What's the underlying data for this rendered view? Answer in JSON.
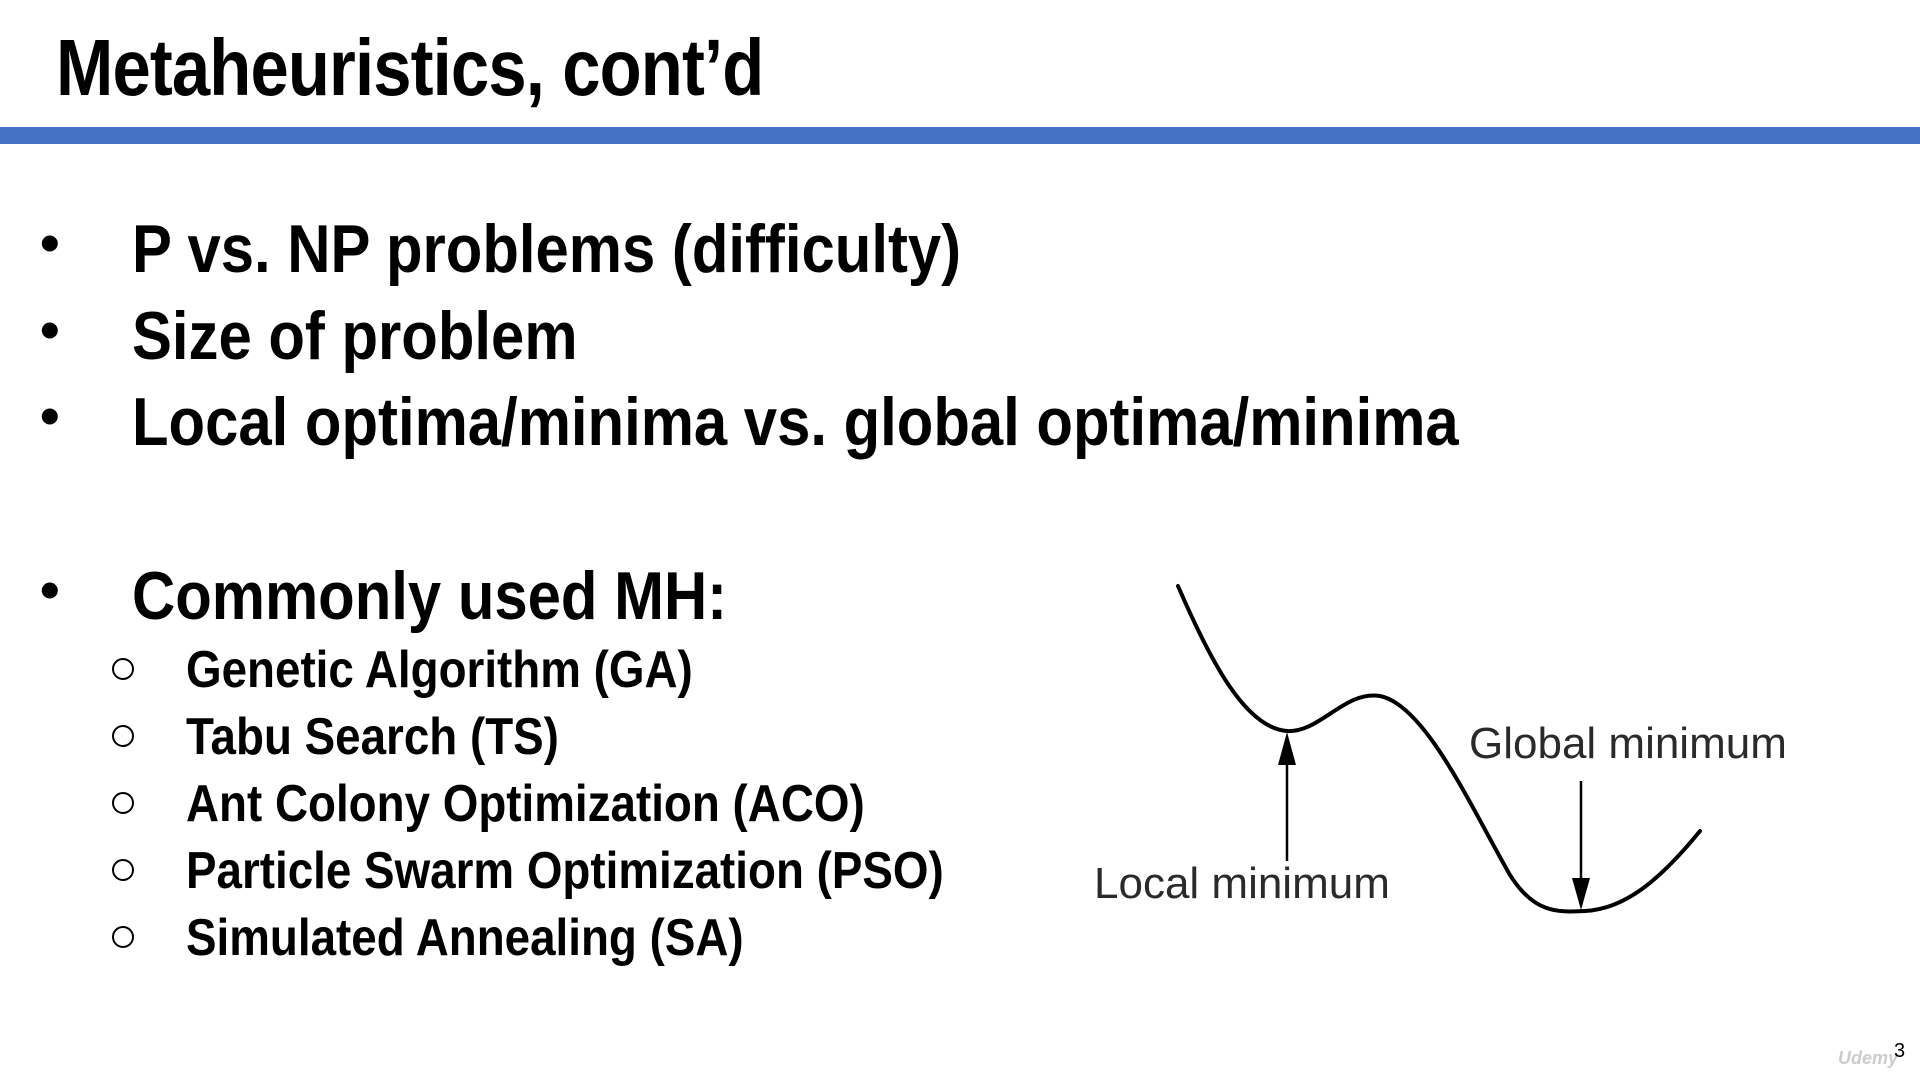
{
  "slide": {
    "title": "Metaheuristics, cont’d",
    "accent_color": "#4472c4",
    "bullets": [
      "P vs. NP problems (difficulty)",
      "Size of problem",
      "Local optima/minima vs. global optima/minima",
      "Commonly used MH:"
    ],
    "bullet_symbol": "•",
    "sub_bullets": [
      "Genetic Algorithm (GA)",
      "Tabu Search (TS)",
      "Ant Colony Optimization (ACO)",
      "Particle Swarm Optimization (PSO)",
      "Simulated Annealing (SA)"
    ],
    "diagram": {
      "local_label": "Local minimum",
      "global_label": "Global minimum"
    },
    "page_number": "3",
    "watermark_text": "Udemy"
  }
}
